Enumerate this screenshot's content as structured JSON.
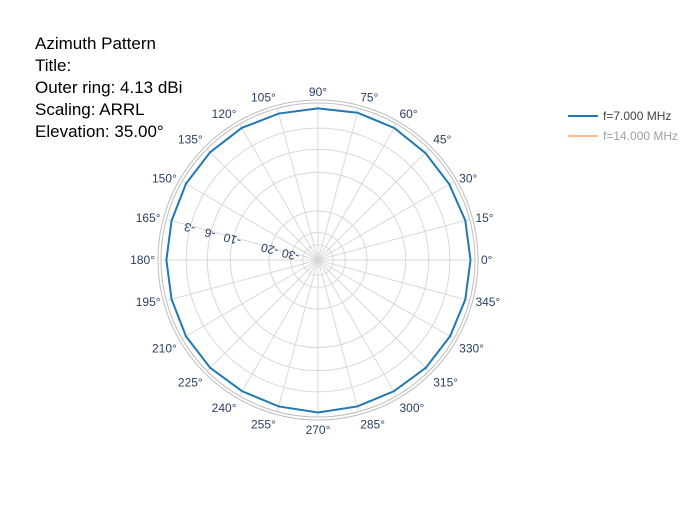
{
  "info": {
    "lines": [
      "Azimuth Pattern",
      "Title:",
      "Outer ring: 4.13 dBi",
      "Scaling: ARRL",
      "Elevation: 35.00°"
    ]
  },
  "legend": [
    {
      "label": "f=7.000 MHz",
      "color": "#1f77b4",
      "visible": true
    },
    {
      "label": "f=14.000 MHz",
      "color": "#ffbb88",
      "visible": false
    }
  ],
  "colors": {
    "grid": "#d8d8d8",
    "outer_ring": "#bdbdbd",
    "tick_text": "#2a3f5f",
    "trace": "#1f77b4"
  },
  "chart_data": {
    "type": "polar-line",
    "title": "",
    "angular_axis": {
      "unit": "degrees",
      "direction": "counterclockwise",
      "rotation": 0,
      "ticks": [
        "0°",
        "15°",
        "30°",
        "45°",
        "60°",
        "75°",
        "90°",
        "105°",
        "120°",
        "135°",
        "150°",
        "165°",
        "180°",
        "195°",
        "210°",
        "225°",
        "240°",
        "255°",
        "270°",
        "285°",
        "300°",
        "315°",
        "330°",
        "345°"
      ]
    },
    "radial_axis": {
      "scaling": "ARRL",
      "max_db": 4.13,
      "tick_labels": [
        "-3",
        "-6",
        "-10",
        "-20",
        "-30"
      ],
      "tick_values_rel": [
        -3,
        -6,
        -10,
        -20,
        -30
      ],
      "extra_rings_rel": [
        -40
      ],
      "tick_label_angle_deg": 165
    },
    "series": [
      {
        "name": "f=7.000 MHz",
        "visible": true,
        "azimuth_deg": [
          0,
          15,
          30,
          45,
          60,
          75,
          90,
          105,
          120,
          135,
          150,
          165,
          180,
          195,
          210,
          225,
          240,
          255,
          270,
          285,
          300,
          315,
          330,
          345,
          360
        ],
        "gain_rel_db": [
          -0.5,
          -0.5,
          -0.6,
          -0.6,
          -0.5,
          -0.5,
          -0.6,
          -0.6,
          -0.5,
          -0.5,
          -0.5,
          -0.6,
          -0.6,
          -0.6,
          -0.5,
          -0.5,
          -0.6,
          -0.6,
          -0.5,
          -0.6,
          -0.6,
          -0.5,
          -0.5,
          -0.5,
          -0.5
        ]
      },
      {
        "name": "f=14.000 MHz",
        "visible": false,
        "azimuth_deg": [],
        "gain_rel_db": []
      }
    ],
    "legend_position": "top-right",
    "grid": true
  }
}
